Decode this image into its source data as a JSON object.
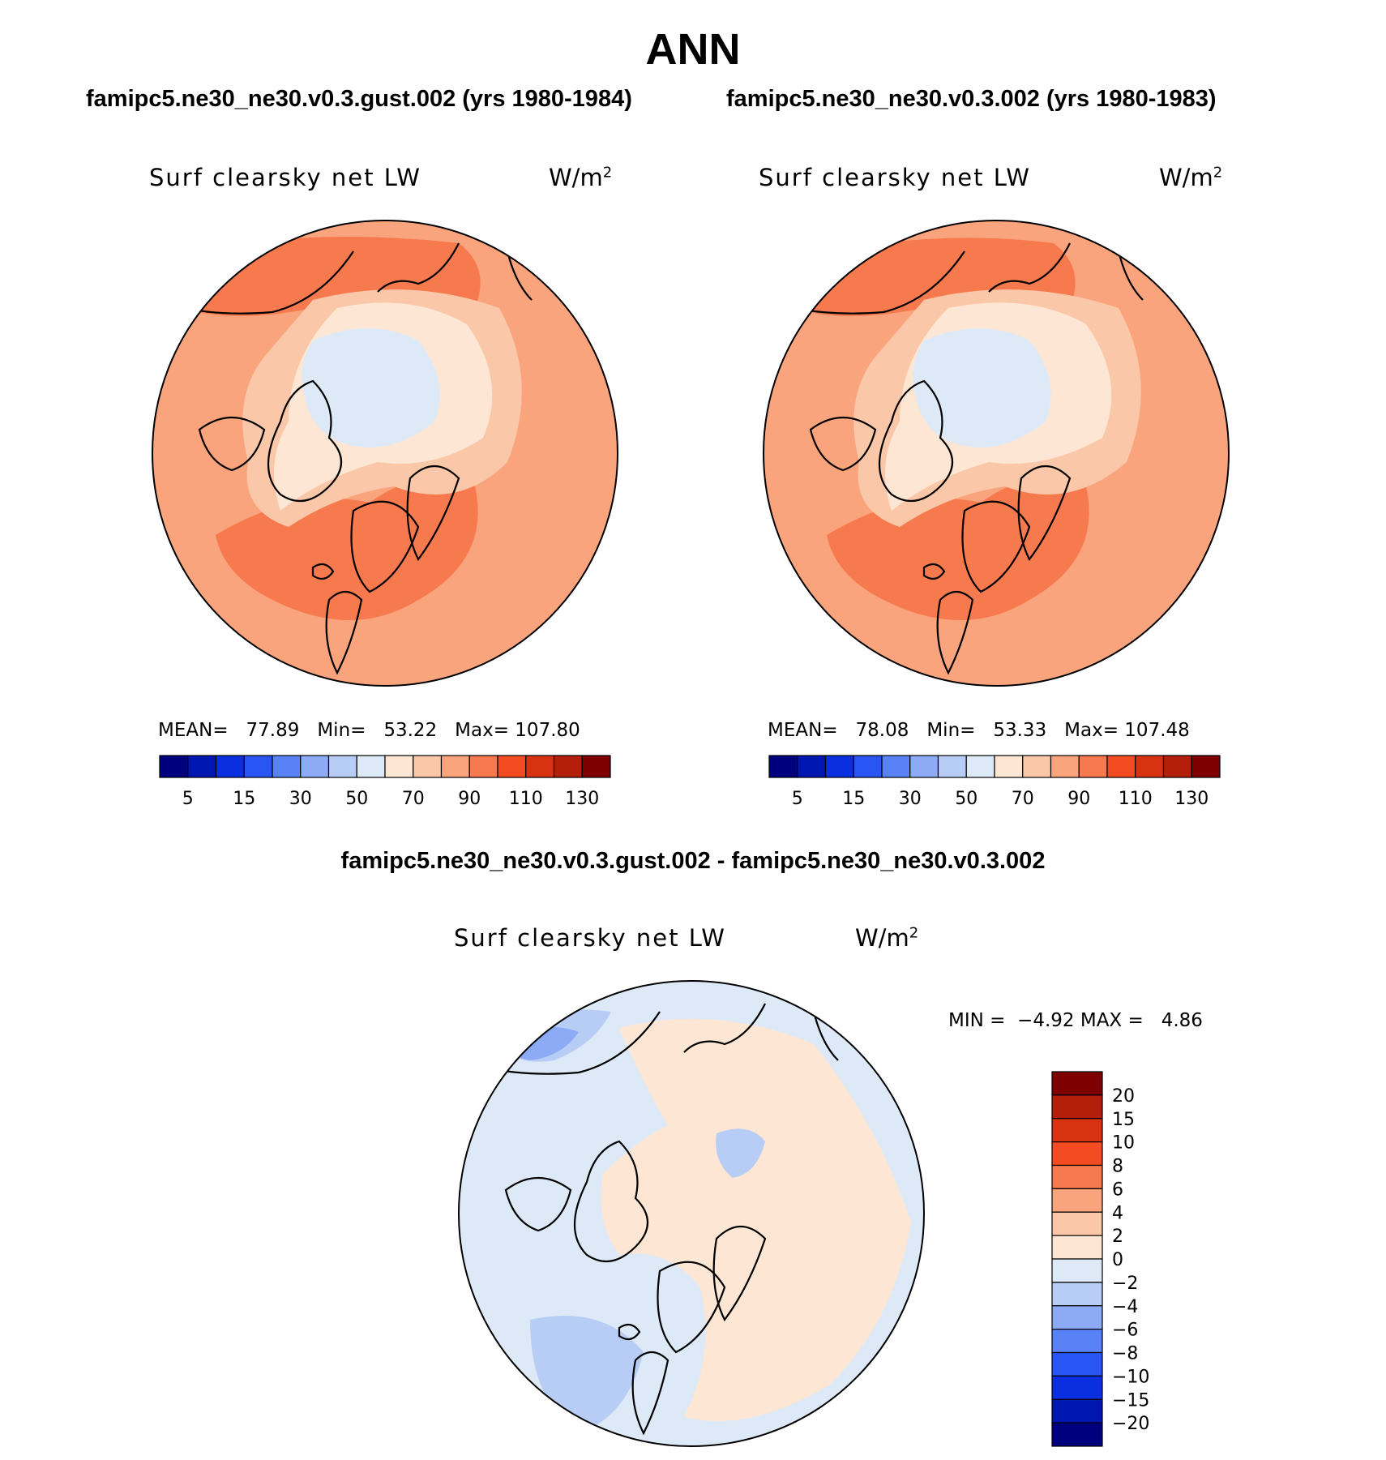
{
  "figure_title": "ANN",
  "panels": [
    {
      "case_title": "famipc5.ne30_ne30.v0.3.gust.002 (yrs 1980-1984)",
      "variable": "Surf clearsky net LW",
      "units": "W/m",
      "units_sup": "2",
      "mean_label": "MEAN=",
      "mean": "77.89",
      "min_label": "Min=",
      "min": "53.22",
      "max_label": "Max=",
      "max": "107.80"
    },
    {
      "case_title": "famipc5.ne30_ne30.v0.3.002 (yrs 1980-1983)",
      "variable": "Surf clearsky net LW",
      "units": "W/m",
      "units_sup": "2",
      "mean_label": "MEAN=",
      "mean": "78.08",
      "min_label": "Min=",
      "min": "53.33",
      "max_label": "Max=",
      "max": "107.48"
    }
  ],
  "difference": {
    "title": "famipc5.ne30_ne30.v0.3.gust.002 - famipc5.ne30_ne30.v0.3.002",
    "variable": "Surf clearsky net LW",
    "units": "W/m",
    "units_sup": "2",
    "min_label": "MIN =",
    "min": "−4.92",
    "max_label": "MAX =",
    "max": "4.86"
  },
  "colorbar_abs": {
    "colors": [
      "#00007f",
      "#0016b0",
      "#0a2fe0",
      "#2a55f5",
      "#5a82f7",
      "#8caaf6",
      "#b8cdf6",
      "#dde9f7",
      "#fde7d4",
      "#fbc7a9",
      "#f9a47c",
      "#f77a4f",
      "#f34c22",
      "#d83311",
      "#b31f0a",
      "#7f0000"
    ],
    "tick_labels": [
      "5",
      "15",
      "30",
      "50",
      "70",
      "90",
      "110",
      "130"
    ]
  },
  "colorbar_diff": {
    "colors": [
      "#00007f",
      "#0016b0",
      "#0a2fe0",
      "#2a55f5",
      "#5a82f7",
      "#8caaf6",
      "#b8cdf6",
      "#dde9f7",
      "#fde7d4",
      "#fbc7a9",
      "#f9a47c",
      "#f77a4f",
      "#f34c22",
      "#d83311",
      "#b31f0a",
      "#7f0000"
    ],
    "tick_labels": [
      "20",
      "15",
      "10",
      "8",
      "6",
      "4",
      "2",
      "0",
      "−2",
      "−4",
      "−6",
      "−8",
      "−10",
      "−15",
      "−20"
    ]
  },
  "map_fill": {
    "abs_base": "#f9a47c",
    "abs_warm": "#f77a4f",
    "abs_mid": "#fbc7a9",
    "abs_light": "#fde7d4",
    "abs_cold": "#dde9f7",
    "diff_base": "#dde9f7",
    "diff_pos": "#fde7d4",
    "diff_neg": "#b8cdf6",
    "diff_neg2": "#8caaf6"
  }
}
